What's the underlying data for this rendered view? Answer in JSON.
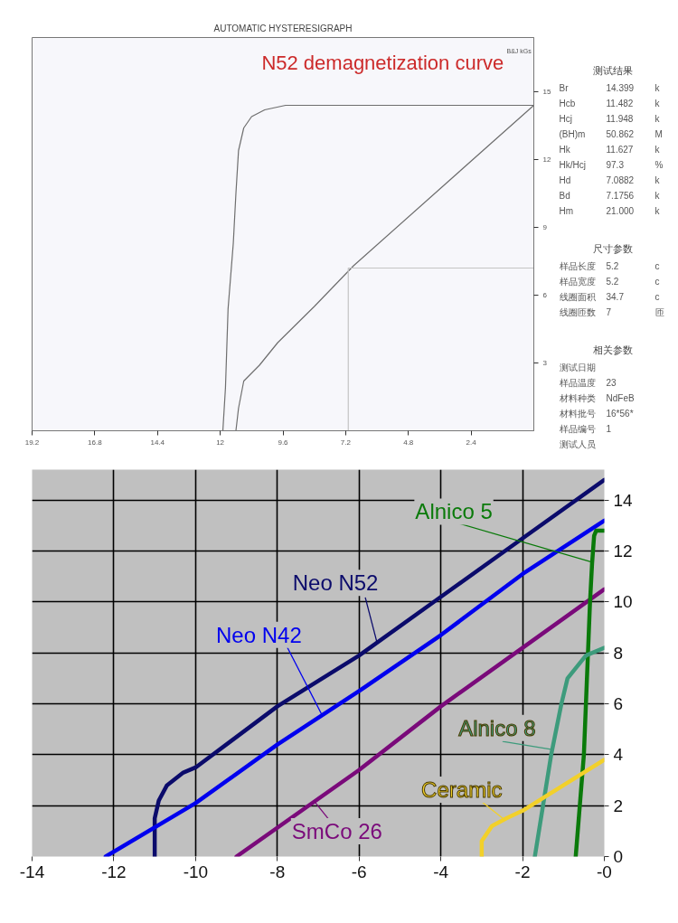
{
  "chart_data": [
    {
      "type": "line",
      "title": "AUTOMATIC HYSTERESIGRAPH",
      "subtitle": "N52 demagnetization curve",
      "ylabel": "B&J kGs",
      "xlim": [
        19.2,
        0
      ],
      "xticks": [
        19.2,
        16.8,
        14.4,
        12,
        9.6,
        7.2,
        4.8,
        2.4
      ],
      "ylim": [
        0,
        17.4
      ],
      "yticks": [
        3,
        6,
        9,
        12,
        15
      ],
      "series": [
        {
          "color": "#6e6e6e",
          "x": [
            0,
            4,
            8,
            9.5,
            10.3,
            10.8,
            11.1,
            11.3,
            11.4,
            11.5,
            11.7,
            11.8,
            11.9
          ],
          "values": [
            14.4,
            14.4,
            14.4,
            14.4,
            14.2,
            13.9,
            13.4,
            12.4,
            10.5,
            8.3,
            5.4,
            1.9,
            0
          ]
        },
        {
          "color": "#6e6e6e",
          "x": [
            0,
            6.9,
            8.4,
            9.8,
            10.5,
            11.1,
            11.3,
            11.4
          ],
          "values": [
            14.4,
            7.3,
            5.5,
            3.9,
            2.9,
            2.2,
            1.0,
            0
          ]
        },
        {
          "color": "#c4c4c4",
          "x": [
            7.1,
            7.1,
            0
          ],
          "values": [
            0,
            7.2,
            7.2
          ]
        }
      ]
    },
    {
      "type": "other",
      "title": "测试结果",
      "annotations": [
        "Br 14.399 k",
        "Hcb 11.482 k",
        "Hcj 11.948 k",
        "(BH)m 50.862 M",
        "Hk 11.627 k",
        "Hk/Hcj 97.3 %",
        "Hd 7.0882 k",
        "Bd 7.1756 k",
        "Hm 21.000 k"
      ]
    },
    {
      "type": "other",
      "title": "尺寸参数",
      "annotations": [
        "样品长度 5.2 c",
        "样品宽度 5.2 c",
        "线圈面积 34.7 c",
        "线圈匝数 7 匝"
      ]
    },
    {
      "type": "other",
      "title": "相关参数",
      "annotations": [
        "测试日期",
        "样品温度 23",
        "材料种类 NdFeB",
        "材料批号 16*56*",
        "样品编号 1",
        "测试人员"
      ]
    },
    {
      "type": "line",
      "xlim": [
        -14,
        0
      ],
      "xticks": [
        -14,
        -12,
        -10,
        -8,
        -6,
        -4,
        -2,
        {
          "value": 0,
          "label": "-0"
        }
      ],
      "ylim": [
        0,
        15.2
      ],
      "yticks": [
        0,
        2,
        4,
        6,
        8,
        10,
        12,
        14
      ],
      "grid": true,
      "series": [
        {
          "name": "Neo N52",
          "color": "#0b0b6b",
          "x": [
            -11,
            -11,
            -10.9,
            -10.7,
            -10.3,
            -10,
            -8,
            -6,
            -4,
            -2,
            0
          ],
          "values": [
            0,
            1.5,
            2.2,
            2.8,
            3.3,
            3.5,
            5.9,
            7.9,
            10.2,
            12.5,
            14.8
          ]
        },
        {
          "name": "Neo N42",
          "color": "#0000ee",
          "x": [
            -12.2,
            -10,
            -8,
            -6,
            -4,
            -2,
            0
          ],
          "values": [
            0,
            2.1,
            4.4,
            6.5,
            8.7,
            11.1,
            13.2
          ]
        },
        {
          "name": "SmCo 26",
          "color": "#7a0a7a",
          "x": [
            -9,
            -6,
            -4,
            -2,
            0
          ],
          "values": [
            0,
            3.4,
            5.9,
            8.2,
            10.5
          ]
        },
        {
          "name": "Alnico 5",
          "color": "#0a7a0a",
          "x": [
            -0.7,
            -0.5,
            -0.4,
            -0.35,
            -0.3,
            -0.25,
            -0.2,
            0
          ],
          "values": [
            0,
            4,
            8,
            10,
            11.5,
            12.6,
            12.8,
            12.8
          ]
        },
        {
          "name": "Alnico 8",
          "color": "#3d9b7c",
          "x": [
            -1.7,
            -1.5,
            -1.3,
            -1.05,
            -0.9,
            -0.7,
            -0.45,
            0
          ],
          "values": [
            0,
            2,
            4,
            6,
            7,
            7.4,
            7.9,
            8.2
          ]
        },
        {
          "name": "Ceramic",
          "color": "#f2d02a",
          "x": [
            -3,
            -3,
            -2.75,
            -2.4,
            -2,
            -1,
            0
          ],
          "values": [
            0,
            0.6,
            1.2,
            1.5,
            1.8,
            2.8,
            3.8
          ]
        }
      ]
    }
  ]
}
